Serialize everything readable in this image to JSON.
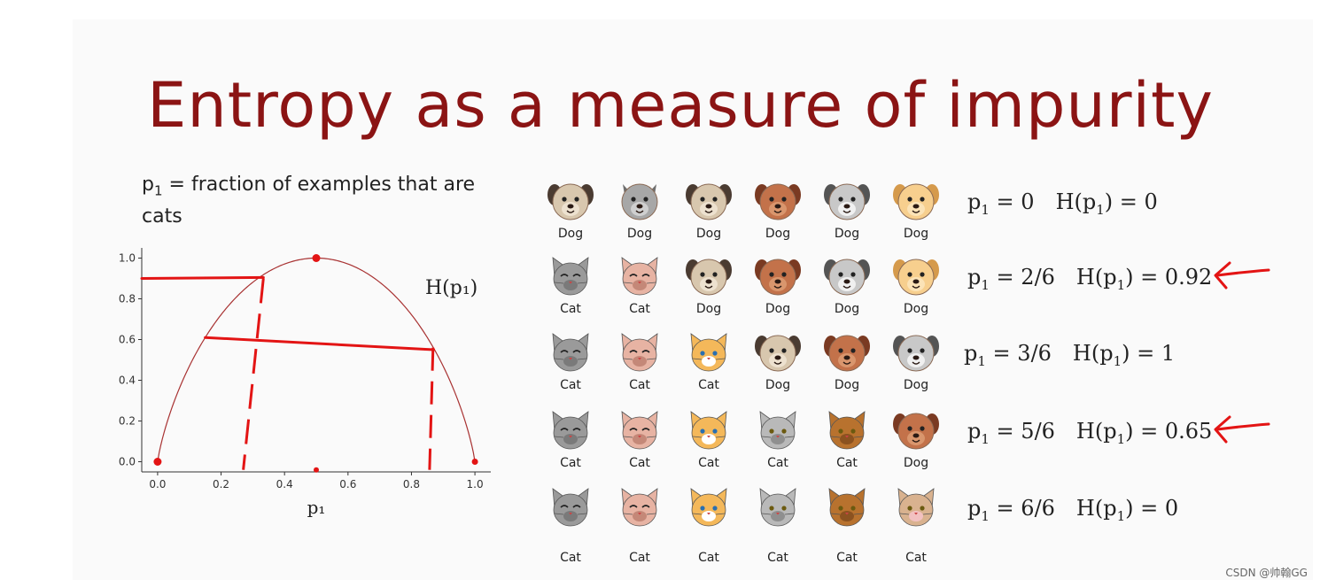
{
  "title": "Entropy as a measure of impurity",
  "definition": {
    "var": "p",
    "sub": "1",
    "text": "= fraction of examples that are cats"
  },
  "chart_data": {
    "type": "line",
    "title": "",
    "xlabel": "p₁",
    "ylabel": "",
    "curve_label": "H(p₁)",
    "function": "H(p) = -p log2 p - (1-p) log2(1-p)",
    "xlim": [
      -0.05,
      1.05
    ],
    "ylim": [
      -0.05,
      1.05
    ],
    "xticks": [
      "0.0",
      "0.2",
      "0.4",
      "0.6",
      "0.8",
      "1.0"
    ],
    "yticks": [
      "0.0",
      "0.2",
      "0.4",
      "0.6",
      "0.8",
      "1.0"
    ],
    "x": [
      0,
      0.02,
      0.05,
      0.1,
      0.15,
      0.2,
      0.25,
      0.3,
      0.333,
      0.35,
      0.4,
      0.45,
      0.5,
      0.55,
      0.6,
      0.65,
      0.7,
      0.75,
      0.8,
      0.833,
      0.85,
      0.9,
      0.95,
      0.98,
      1.0
    ],
    "y": [
      0,
      0.141,
      0.286,
      0.469,
      0.61,
      0.722,
      0.811,
      0.881,
      0.918,
      0.934,
      0.971,
      0.993,
      1.0,
      0.993,
      0.971,
      0.934,
      0.881,
      0.811,
      0.722,
      0.65,
      0.61,
      0.469,
      0.286,
      0.141,
      0
    ],
    "grid": false,
    "annotations_color": "#e31414"
  },
  "examples": [
    {
      "animals": [
        "dog-pug",
        "dog-cat-ears",
        "dog-pug",
        "dog-brown",
        "dog-gray",
        "dog-golden"
      ],
      "labels": [
        "Dog",
        "Dog",
        "Dog",
        "Dog",
        "Dog",
        "Dog"
      ],
      "p": "0",
      "h": "0",
      "arrow": false
    },
    {
      "animals": [
        "cat-gray",
        "cat-pink",
        "dog-pug",
        "dog-brown",
        "dog-gray",
        "dog-golden"
      ],
      "labels": [
        "Cat",
        "Cat",
        "Dog",
        "Dog",
        "Dog",
        "Dog"
      ],
      "p": "2/6",
      "h": "0.92",
      "arrow": true
    },
    {
      "animals": [
        "cat-gray",
        "cat-pink",
        "cat-orange",
        "dog-pug",
        "dog-brown",
        "dog-gray"
      ],
      "labels": [
        "Cat",
        "Cat",
        "Cat",
        "Dog",
        "Dog",
        "Dog"
      ],
      "p": "3/6",
      "h": "1",
      "arrow": false
    },
    {
      "animals": [
        "cat-gray",
        "cat-pink",
        "cat-orange",
        "cat-silver",
        "cat-brown",
        "dog-brown"
      ],
      "labels": [
        "Cat",
        "Cat",
        "Cat",
        "Cat",
        "Cat",
        "Dog"
      ],
      "p": "5/6",
      "h": "0.65",
      "arrow": true
    },
    {
      "animals": [
        "cat-gray",
        "cat-pink",
        "cat-orange",
        "cat-silver",
        "cat-brown",
        "cat-tabby"
      ],
      "labels": [
        "Cat",
        "Cat",
        "Cat",
        "Cat",
        "Cat",
        "Cat"
      ],
      "p": "6/6",
      "h": "0",
      "arrow": false
    }
  ],
  "watermark": "CSDN @帅翰GG",
  "colors": {
    "title": "#8b1414",
    "curve": "#a83232",
    "ink": "#e31414"
  }
}
